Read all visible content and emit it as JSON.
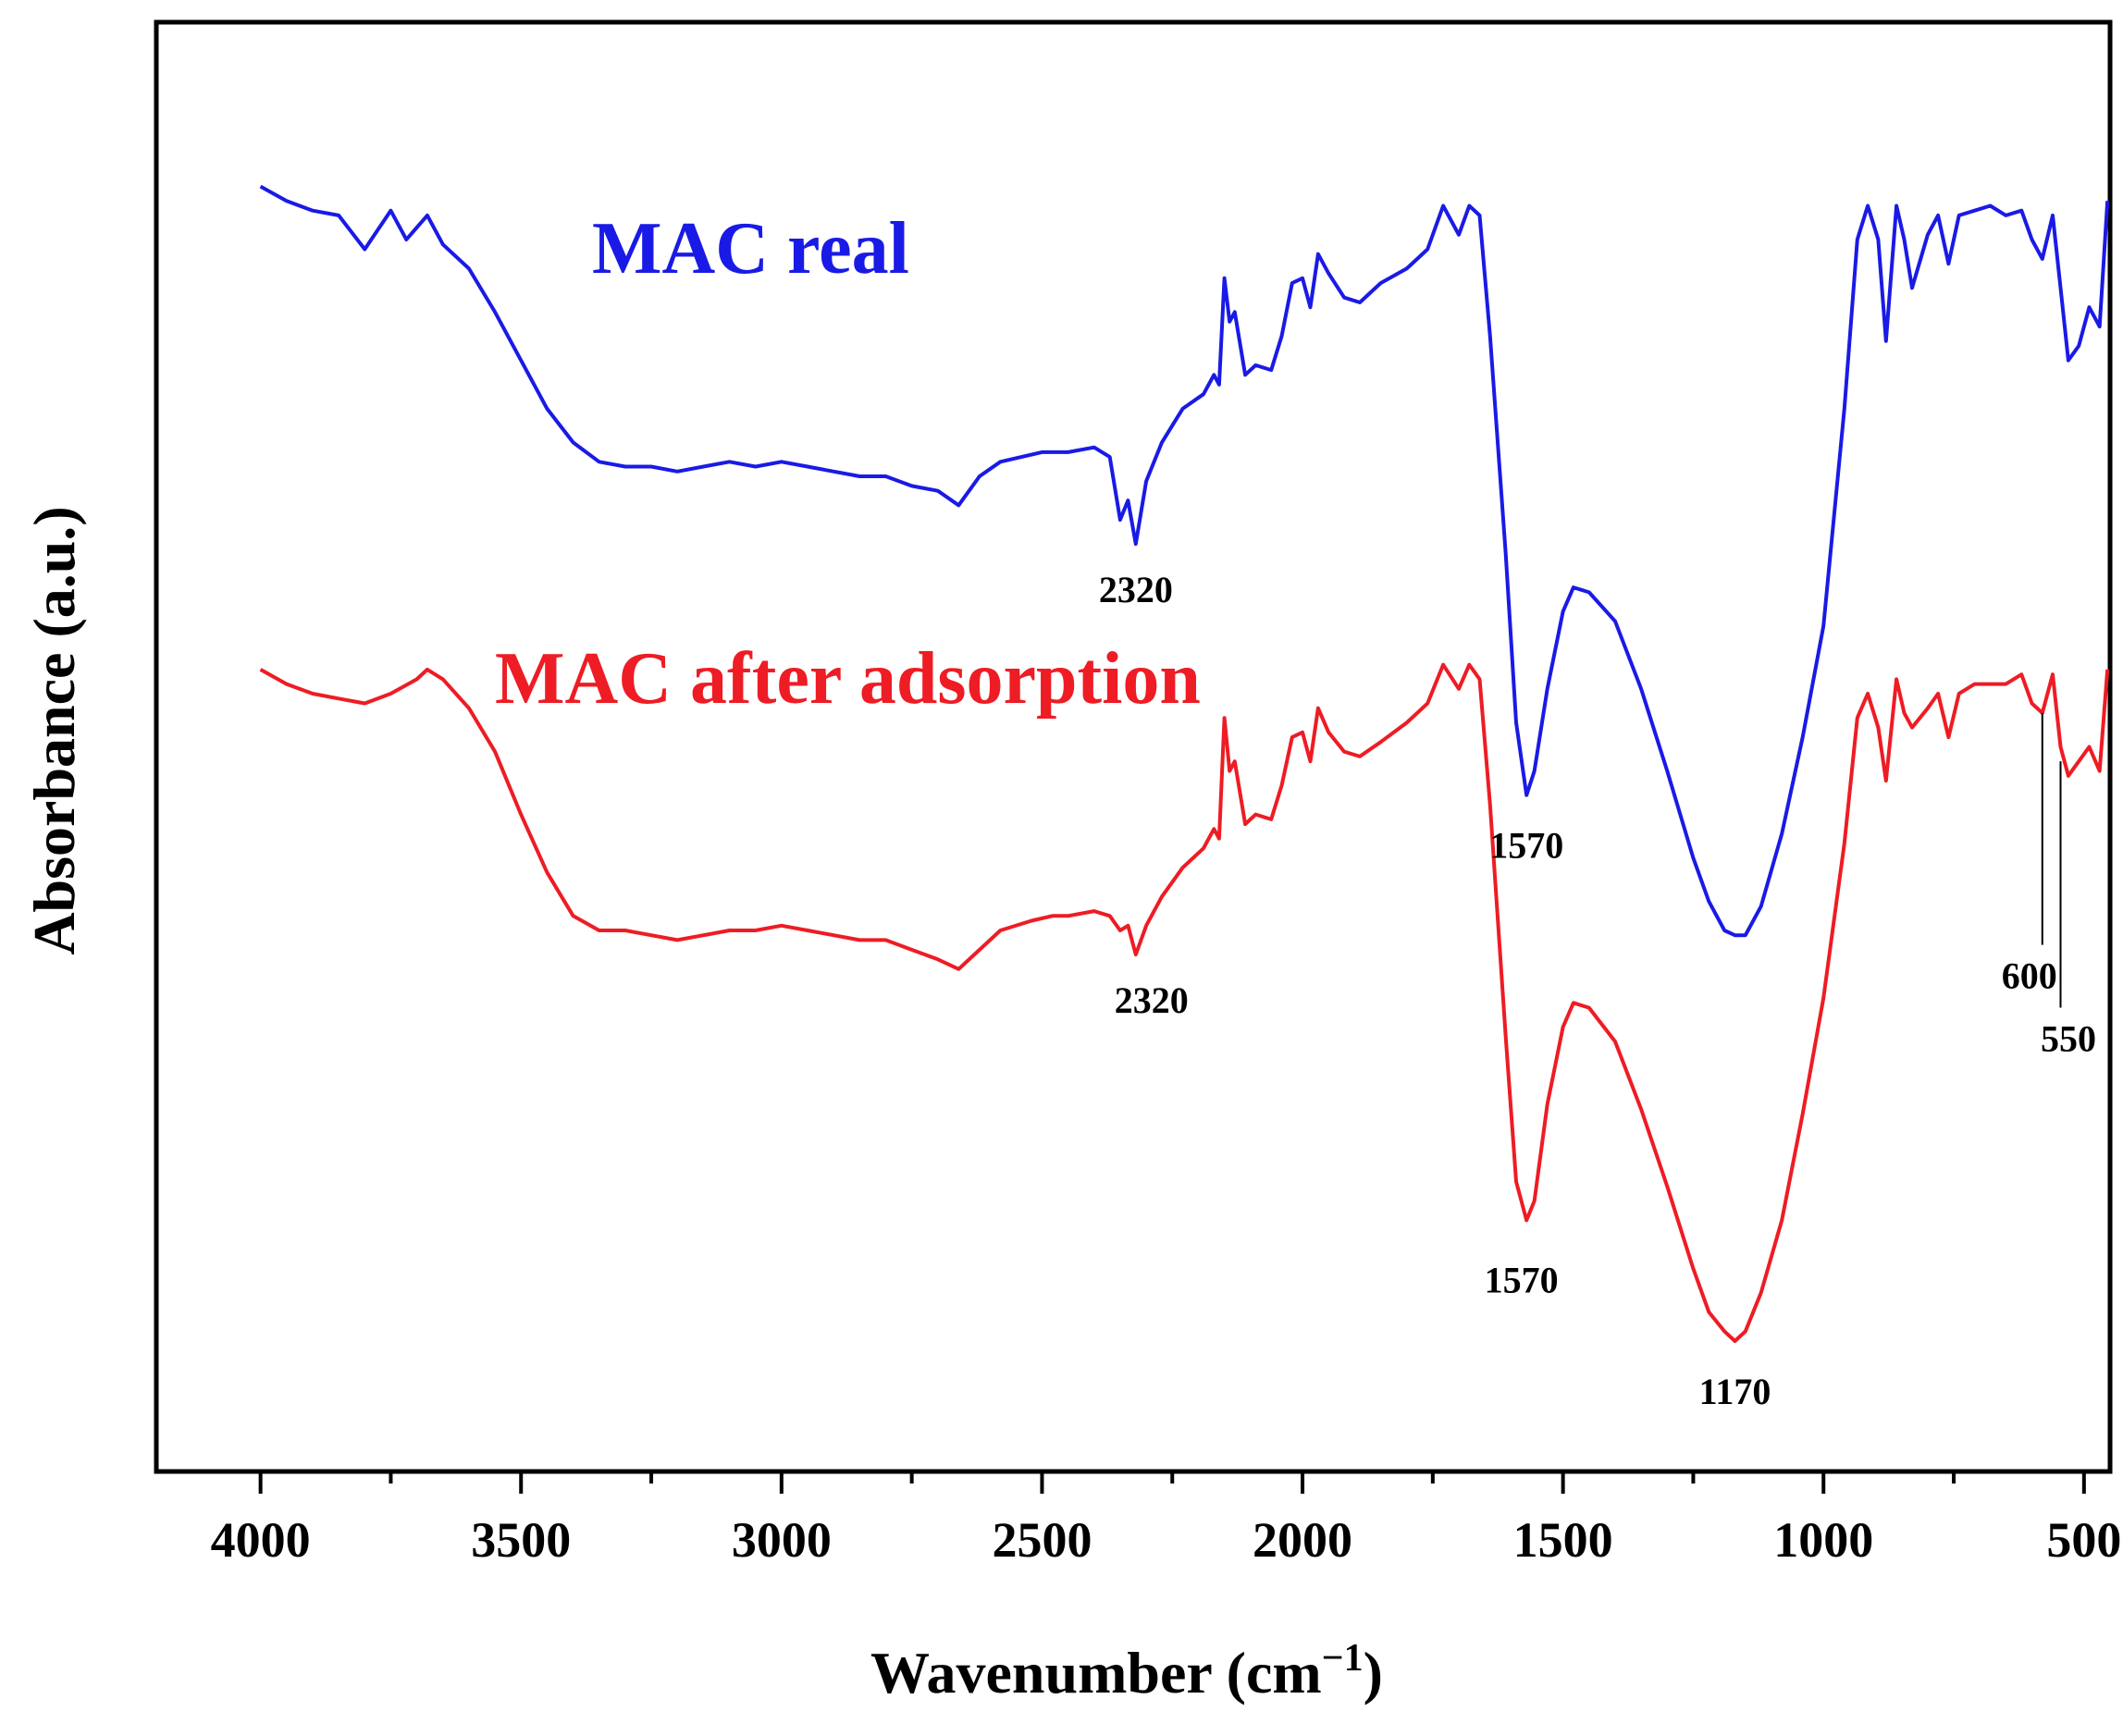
{
  "chart_data": {
    "type": "line",
    "title": "",
    "xlabel": "Wavenumber (cm",
    "xlabel_sup": "−1",
    "xlabel_close": ")",
    "ylabel": "Absorbance (a.u.)",
    "xlim": [
      4200,
      450
    ],
    "ylim": [
      0,
      3
    ],
    "xticks": [
      "4000",
      "3500",
      "3000",
      "2500",
      "2000",
      "1500",
      "1000",
      "500"
    ],
    "legend": [
      {
        "label": "MAC real",
        "color": "#1a1ae6"
      },
      {
        "label": "MAC after adsorption",
        "color": "#ee1c24"
      }
    ],
    "series": [
      {
        "name": "MAC real",
        "color": "#1a1ae6",
        "points": [
          [
            4000,
            2.66
          ],
          [
            3950,
            2.63
          ],
          [
            3900,
            2.61
          ],
          [
            3850,
            2.6
          ],
          [
            3800,
            2.53
          ],
          [
            3750,
            2.61
          ],
          [
            3720,
            2.55
          ],
          [
            3680,
            2.6
          ],
          [
            3650,
            2.54
          ],
          [
            3600,
            2.49
          ],
          [
            3550,
            2.4
          ],
          [
            3500,
            2.3
          ],
          [
            3450,
            2.2
          ],
          [
            3400,
            2.13
          ],
          [
            3350,
            2.09
          ],
          [
            3300,
            2.08
          ],
          [
            3250,
            2.08
          ],
          [
            3200,
            2.07
          ],
          [
            3150,
            2.08
          ],
          [
            3100,
            2.09
          ],
          [
            3050,
            2.08
          ],
          [
            3000,
            2.09
          ],
          [
            2950,
            2.08
          ],
          [
            2900,
            2.07
          ],
          [
            2850,
            2.06
          ],
          [
            2800,
            2.06
          ],
          [
            2750,
            2.04
          ],
          [
            2700,
            2.03
          ],
          [
            2660,
            2.0
          ],
          [
            2620,
            2.06
          ],
          [
            2580,
            2.09
          ],
          [
            2500,
            2.11
          ],
          [
            2450,
            2.11
          ],
          [
            2400,
            2.12
          ],
          [
            2370,
            2.1
          ],
          [
            2350,
            1.97
          ],
          [
            2335,
            2.01
          ],
          [
            2320,
            1.92
          ],
          [
            2300,
            2.05
          ],
          [
            2270,
            2.13
          ],
          [
            2230,
            2.2
          ],
          [
            2190,
            2.23
          ],
          [
            2170,
            2.27
          ],
          [
            2160,
            2.25
          ],
          [
            2150,
            2.47
          ],
          [
            2140,
            2.38
          ],
          [
            2130,
            2.4
          ],
          [
            2110,
            2.27
          ],
          [
            2090,
            2.29
          ],
          [
            2060,
            2.28
          ],
          [
            2040,
            2.35
          ],
          [
            2020,
            2.46
          ],
          [
            2000,
            2.47
          ],
          [
            1985,
            2.41
          ],
          [
            1970,
            2.52
          ],
          [
            1950,
            2.48
          ],
          [
            1920,
            2.43
          ],
          [
            1890,
            2.42
          ],
          [
            1850,
            2.46
          ],
          [
            1800,
            2.49
          ],
          [
            1760,
            2.53
          ],
          [
            1730,
            2.62
          ],
          [
            1700,
            2.56
          ],
          [
            1680,
            2.62
          ],
          [
            1660,
            2.6
          ],
          [
            1640,
            2.35
          ],
          [
            1610,
            1.9
          ],
          [
            1590,
            1.55
          ],
          [
            1570,
            1.4
          ],
          [
            1555,
            1.45
          ],
          [
            1530,
            1.62
          ],
          [
            1500,
            1.78
          ],
          [
            1480,
            1.83
          ],
          [
            1450,
            1.82
          ],
          [
            1400,
            1.76
          ],
          [
            1350,
            1.62
          ],
          [
            1300,
            1.45
          ],
          [
            1250,
            1.27
          ],
          [
            1220,
            1.18
          ],
          [
            1190,
            1.12
          ],
          [
            1170,
            1.11
          ],
          [
            1150,
            1.11
          ],
          [
            1120,
            1.17
          ],
          [
            1080,
            1.32
          ],
          [
            1040,
            1.52
          ],
          [
            1000,
            1.75
          ],
          [
            960,
            2.2
          ],
          [
            935,
            2.55
          ],
          [
            915,
            2.62
          ],
          [
            895,
            2.55
          ],
          [
            880,
            2.34
          ],
          [
            860,
            2.62
          ],
          [
            845,
            2.55
          ],
          [
            830,
            2.45
          ],
          [
            800,
            2.56
          ],
          [
            780,
            2.6
          ],
          [
            760,
            2.5
          ],
          [
            740,
            2.6
          ],
          [
            710,
            2.61
          ],
          [
            680,
            2.62
          ],
          [
            650,
            2.6
          ],
          [
            620,
            2.61
          ],
          [
            600,
            2.55
          ],
          [
            580,
            2.51
          ],
          [
            560,
            2.6
          ],
          [
            545,
            2.45
          ],
          [
            530,
            2.3
          ],
          [
            510,
            2.33
          ],
          [
            490,
            2.41
          ],
          [
            470,
            2.37
          ],
          [
            455,
            2.63
          ]
        ]
      },
      {
        "name": "MAC after adsorption",
        "color": "#ee1c24",
        "points": [
          [
            4000,
            1.66
          ],
          [
            3950,
            1.63
          ],
          [
            3900,
            1.61
          ],
          [
            3850,
            1.6
          ],
          [
            3800,
            1.59
          ],
          [
            3750,
            1.61
          ],
          [
            3700,
            1.64
          ],
          [
            3680,
            1.66
          ],
          [
            3650,
            1.64
          ],
          [
            3600,
            1.58
          ],
          [
            3550,
            1.49
          ],
          [
            3500,
            1.36
          ],
          [
            3450,
            1.24
          ],
          [
            3400,
            1.15
          ],
          [
            3350,
            1.12
          ],
          [
            3300,
            1.12
          ],
          [
            3250,
            1.11
          ],
          [
            3200,
            1.1
          ],
          [
            3150,
            1.11
          ],
          [
            3100,
            1.12
          ],
          [
            3050,
            1.12
          ],
          [
            3000,
            1.13
          ],
          [
            2950,
            1.12
          ],
          [
            2900,
            1.11
          ],
          [
            2850,
            1.1
          ],
          [
            2800,
            1.1
          ],
          [
            2750,
            1.08
          ],
          [
            2700,
            1.06
          ],
          [
            2660,
            1.04
          ],
          [
            2620,
            1.08
          ],
          [
            2580,
            1.12
          ],
          [
            2520,
            1.14
          ],
          [
            2480,
            1.15
          ],
          [
            2450,
            1.15
          ],
          [
            2400,
            1.16
          ],
          [
            2370,
            1.15
          ],
          [
            2350,
            1.12
          ],
          [
            2335,
            1.13
          ],
          [
            2320,
            1.07
          ],
          [
            2300,
            1.13
          ],
          [
            2270,
            1.19
          ],
          [
            2230,
            1.25
          ],
          [
            2190,
            1.29
          ],
          [
            2170,
            1.33
          ],
          [
            2160,
            1.31
          ],
          [
            2150,
            1.56
          ],
          [
            2140,
            1.45
          ],
          [
            2130,
            1.47
          ],
          [
            2110,
            1.34
          ],
          [
            2090,
            1.36
          ],
          [
            2060,
            1.35
          ],
          [
            2040,
            1.42
          ],
          [
            2020,
            1.52
          ],
          [
            2000,
            1.53
          ],
          [
            1985,
            1.47
          ],
          [
            1970,
            1.58
          ],
          [
            1950,
            1.53
          ],
          [
            1920,
            1.49
          ],
          [
            1890,
            1.48
          ],
          [
            1850,
            1.51
          ],
          [
            1800,
            1.55
          ],
          [
            1760,
            1.59
          ],
          [
            1730,
            1.67
          ],
          [
            1700,
            1.62
          ],
          [
            1680,
            1.67
          ],
          [
            1660,
            1.64
          ],
          [
            1640,
            1.38
          ],
          [
            1610,
            0.9
          ],
          [
            1590,
            0.6
          ],
          [
            1570,
            0.52
          ],
          [
            1555,
            0.56
          ],
          [
            1530,
            0.76
          ],
          [
            1500,
            0.92
          ],
          [
            1480,
            0.97
          ],
          [
            1450,
            0.96
          ],
          [
            1400,
            0.89
          ],
          [
            1350,
            0.75
          ],
          [
            1300,
            0.59
          ],
          [
            1250,
            0.42
          ],
          [
            1220,
            0.33
          ],
          [
            1190,
            0.29
          ],
          [
            1170,
            0.27
          ],
          [
            1150,
            0.29
          ],
          [
            1120,
            0.37
          ],
          [
            1080,
            0.52
          ],
          [
            1040,
            0.74
          ],
          [
            1000,
            0.98
          ],
          [
            960,
            1.3
          ],
          [
            935,
            1.56
          ],
          [
            915,
            1.61
          ],
          [
            895,
            1.54
          ],
          [
            880,
            1.43
          ],
          [
            860,
            1.64
          ],
          [
            845,
            1.57
          ],
          [
            830,
            1.54
          ],
          [
            800,
            1.58
          ],
          [
            780,
            1.61
          ],
          [
            760,
            1.52
          ],
          [
            740,
            1.61
          ],
          [
            710,
            1.63
          ],
          [
            680,
            1.63
          ],
          [
            650,
            1.63
          ],
          [
            620,
            1.65
          ],
          [
            600,
            1.59
          ],
          [
            580,
            1.57
          ],
          [
            560,
            1.65
          ],
          [
            545,
            1.5
          ],
          [
            530,
            1.44
          ],
          [
            510,
            1.47
          ],
          [
            490,
            1.5
          ],
          [
            470,
            1.45
          ],
          [
            455,
            1.66
          ]
        ]
      }
    ],
    "annotations": [
      {
        "text": "2320",
        "x": 2320,
        "y": 1.8
      },
      {
        "text": "1570",
        "x": 1570,
        "y": 1.27
      },
      {
        "text": "2320",
        "x": 2290,
        "y": 0.95
      },
      {
        "text": "1570",
        "x": 1580,
        "y": 0.37
      },
      {
        "text": "1170",
        "x": 1170,
        "y": 0.14
      },
      {
        "text": "600",
        "x": 605,
        "y": 1.0
      },
      {
        "text": "550",
        "x": 530,
        "y": 0.87
      }
    ],
    "leader_lines": [
      {
        "label": "600",
        "x": 580,
        "y_from": 1.57,
        "y_to": 1.09
      },
      {
        "label": "550",
        "x": 545,
        "y_from": 1.47,
        "y_to": 0.96
      }
    ]
  }
}
